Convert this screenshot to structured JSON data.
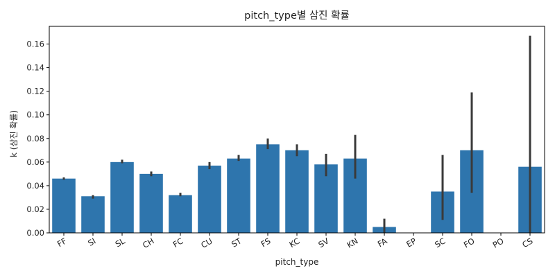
{
  "chart_data": {
    "type": "bar",
    "title": "pitch_type별 삼진 확률",
    "xlabel": "pitch_type",
    "ylabel": "k (삼진 확률)",
    "ylim": [
      0,
      0.175
    ],
    "yticks": [
      "0.00",
      "0.02",
      "0.04",
      "0.06",
      "0.08",
      "0.10",
      "0.12",
      "0.14",
      "0.16"
    ],
    "categories": [
      "FF",
      "SI",
      "SL",
      "CH",
      "FC",
      "CU",
      "ST",
      "FS",
      "KC",
      "SV",
      "KN",
      "FA",
      "EP",
      "SC",
      "FO",
      "PO",
      "CS"
    ],
    "values": [
      0.046,
      0.031,
      0.06,
      0.05,
      0.032,
      0.057,
      0.063,
      0.075,
      0.07,
      0.058,
      0.063,
      0.005,
      0.0,
      0.035,
      0.07,
      0.0,
      0.056
    ],
    "error_bars": [
      [
        0.045,
        0.047
      ],
      [
        0.029,
        0.032
      ],
      [
        0.059,
        0.062
      ],
      [
        0.048,
        0.052
      ],
      [
        0.031,
        0.034
      ],
      [
        0.054,
        0.06
      ],
      [
        0.061,
        0.066
      ],
      [
        0.071,
        0.08
      ],
      [
        0.065,
        0.075
      ],
      [
        0.048,
        0.067
      ],
      [
        0.046,
        0.083
      ],
      [
        0.0,
        0.012
      ],
      null,
      [
        0.011,
        0.066
      ],
      [
        0.034,
        0.119
      ],
      null,
      [
        0.0,
        0.167
      ]
    ],
    "bar_color": "#2e75ad",
    "error_color": "#3a3a3a",
    "x_tick_rotation_deg": 30,
    "grid": false,
    "legend": "none"
  }
}
